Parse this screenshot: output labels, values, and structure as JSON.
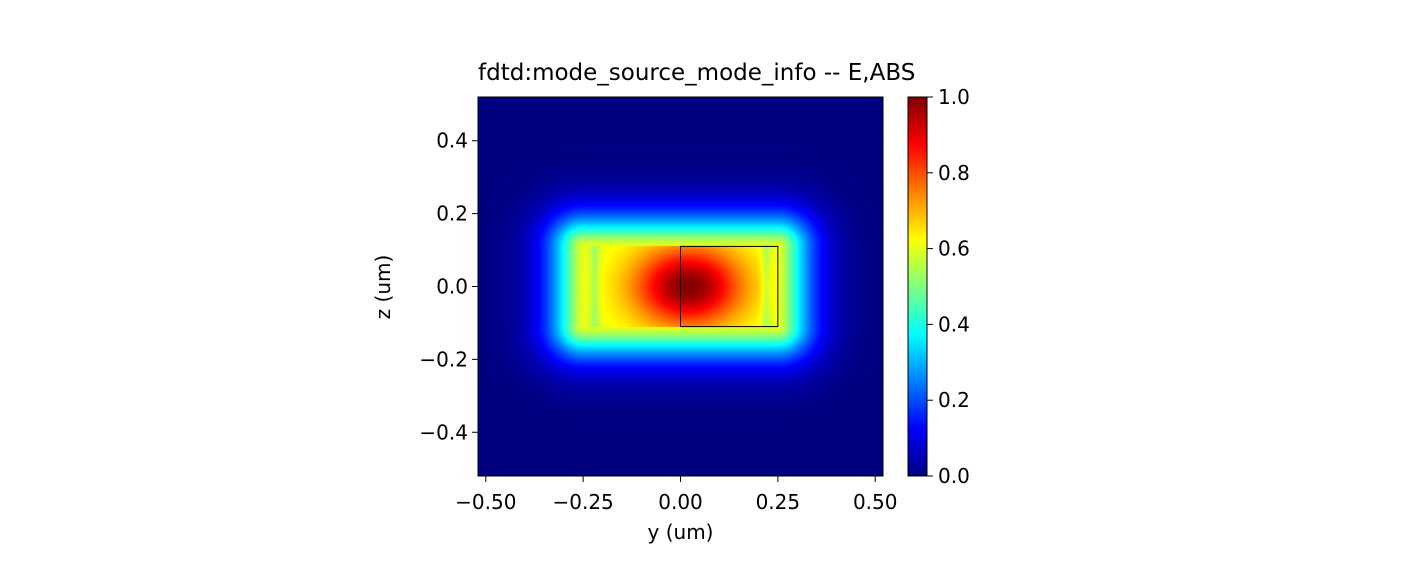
{
  "chart_data": {
    "type": "heatmap",
    "title": "fdtd:mode_source_mode_info -- E,ABS",
    "xlabel": "y (um)",
    "ylabel": "z (um)",
    "xlim": [
      -0.52,
      0.52
    ],
    "ylim": [
      -0.52,
      0.52
    ],
    "xticks": [
      -0.5,
      -0.25,
      0.0,
      0.25,
      0.5
    ],
    "xtick_labels": [
      "−0.50",
      "−0.25",
      "0.00",
      "0.25",
      "0.50"
    ],
    "yticks": [
      -0.4,
      -0.2,
      0.0,
      0.2,
      0.4
    ],
    "ytick_labels": [
      "−0.4",
      "−0.2",
      "0.0",
      "0.2",
      "0.4"
    ],
    "colormap": "jet",
    "value_range": [
      0.0,
      1.0
    ],
    "colorbar": {
      "ticks": [
        0.0,
        0.2,
        0.4,
        0.6,
        0.8,
        1.0
      ],
      "tick_labels": [
        "0.0",
        "0.2",
        "0.4",
        "0.6",
        "0.8",
        "1.0"
      ]
    },
    "field": {
      "peak_value": 1.0,
      "peak_location": [
        0.02,
        0.0
      ],
      "core_extent_y": [
        -0.25,
        0.25
      ],
      "core_extent_z": [
        -0.11,
        0.11
      ],
      "edge_level": 0.6
    },
    "overlay_rect": {
      "y": [
        0.0,
        0.25
      ],
      "z": [
        -0.11,
        0.11
      ],
      "stroke": "#000000"
    }
  }
}
